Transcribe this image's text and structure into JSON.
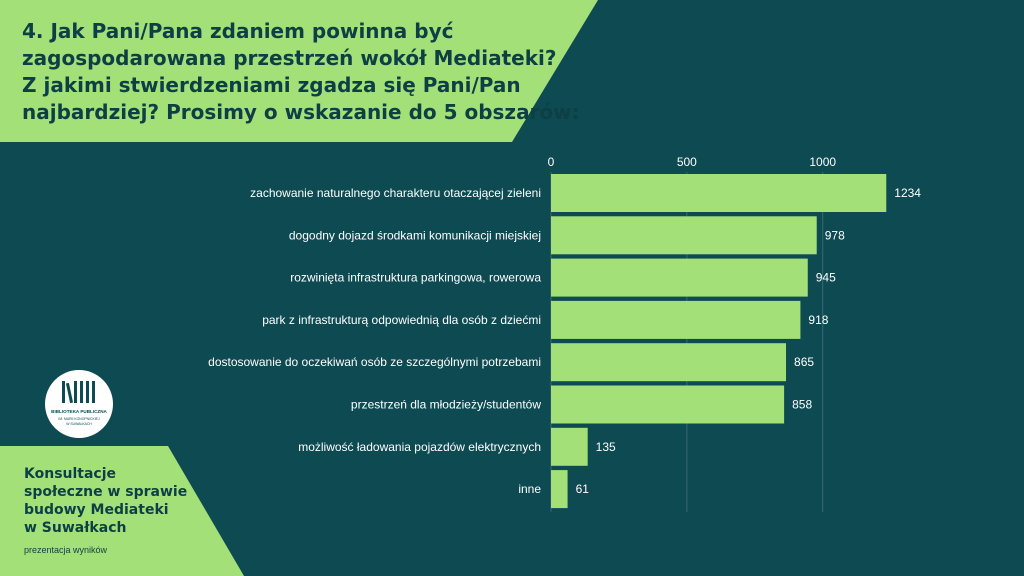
{
  "slide": {
    "title_lines": [
      "4. Jak Pani/Pana zdaniem powinna być",
      "zagospodarowana przestrzeń wokół Mediateki?",
      "Z jakimi stwierdzeniami zgadza się Pani/Pan",
      "najbardziej? Prosimy o wskazanie do 5 obszarów:"
    ],
    "footer_title_lines": [
      "Konsultacje",
      "społeczne w sprawie",
      "budowy Mediateki",
      "w Suwałkach"
    ],
    "footer_sub": "prezentacja wyników",
    "logo": {
      "line1": "BIBLIOTEKA PUBLICZNA",
      "line2": "IM. MARII KONOPNICKIEJ",
      "line3": "W SUWAŁKACH"
    }
  },
  "colors": {
    "background": "#0d4a52",
    "accent": "#a3e078",
    "bar": "#a3e078",
    "text_dark": "#0d3f45",
    "text_light": "#ffffff"
  },
  "chart_data": {
    "type": "bar",
    "orientation": "horizontal",
    "categories": [
      "zachowanie naturalnego charakteru otaczającej zieleni",
      "dogodny dojazd środkami komunikacji miejskiej",
      "rozwinięta infrastruktura parkingowa, rowerowa",
      "park z infrastrukturą odpowiednią dla osób z dziećmi",
      "dostosowanie do oczekiwań osób ze szczególnymi potrzebami",
      "przestrzeń dla młodzieży/studentów",
      "możliwość ładowania pojazdów elektrycznych",
      "inne"
    ],
    "values": [
      1234,
      978,
      945,
      918,
      865,
      858,
      135,
      61
    ],
    "xlim": [
      0,
      1500
    ],
    "xticks": [
      0,
      500,
      1000
    ],
    "axis_position": "top",
    "grid": true
  }
}
